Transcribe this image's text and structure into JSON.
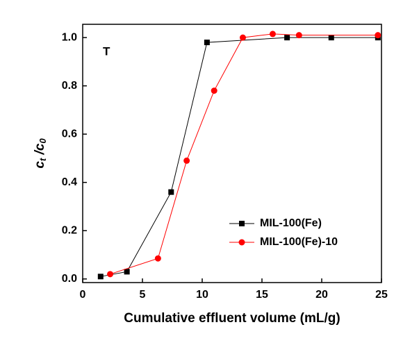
{
  "chart_data": {
    "type": "line",
    "annotation": "T",
    "x_label": "Cumulative effluent volume (mL/g)",
    "y_label": [
      "c",
      "t",
      " /c",
      "0"
    ],
    "xlim": [
      0,
      25
    ],
    "xticks": [
      0,
      5,
      10,
      15,
      20,
      25
    ],
    "ylim": [
      -0.015,
      1.055
    ],
    "yticks": [
      {
        "value": 0,
        "label": "0.0"
      },
      0.2,
      0.4,
      0.6,
      0.8,
      {
        "value": 1,
        "label": "1.0"
      }
    ],
    "legend_position": "lower right",
    "series": [
      {
        "name": "MIL-100(Fe)",
        "color": "#000000",
        "marker": "square",
        "x": [
          1.5,
          3.7,
          7.4,
          10.4,
          17.1,
          20.8,
          24.7
        ],
        "values": [
          0.01,
          0.03,
          0.36,
          0.98,
          1.0,
          1.0,
          1.0
        ]
      },
      {
        "name": "MIL-100(Fe)-10",
        "color": "#ff0000",
        "marker": "circle",
        "x": [
          2.3,
          6.3,
          8.7,
          11.0,
          13.4,
          15.9,
          18.1,
          24.7
        ],
        "values": [
          0.02,
          0.085,
          0.49,
          0.78,
          1.0,
          1.015,
          1.01,
          1.01
        ]
      }
    ]
  }
}
